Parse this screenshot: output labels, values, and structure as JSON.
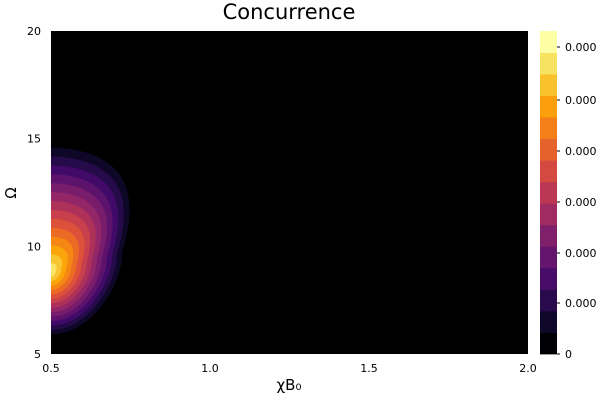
{
  "chart_data": {
    "type": "heatmap",
    "subtype": "filled-contour",
    "title": "Concurrence",
    "xlabel": "χB₀",
    "ylabel": "Ω",
    "xlim": [
      0.5,
      2.0
    ],
    "ylim": [
      5,
      20
    ],
    "x_ticks": [
      "0.5",
      "1.0",
      "1.5",
      "2.0"
    ],
    "y_ticks": [
      "5",
      "10",
      "15",
      "20"
    ],
    "grid": false,
    "background_color": "#000000",
    "colormap": "inferno",
    "colormap_stops": [
      "#000004",
      "#160b39",
      "#420a68",
      "#6a176e",
      "#932667",
      "#bc3754",
      "#dd513a",
      "#f37819",
      "#fca50a",
      "#f6d746",
      "#fcffa4"
    ],
    "contour_levels": 15,
    "colorbar": {
      "position": "right",
      "tick_labels": [
        "0",
        "0.000",
        "0.000",
        "0.000",
        "0.000",
        "0.000",
        "0.000",
        "0.000"
      ]
    },
    "peak": {
      "x": 0.5,
      "y": 8.8
    }
  }
}
